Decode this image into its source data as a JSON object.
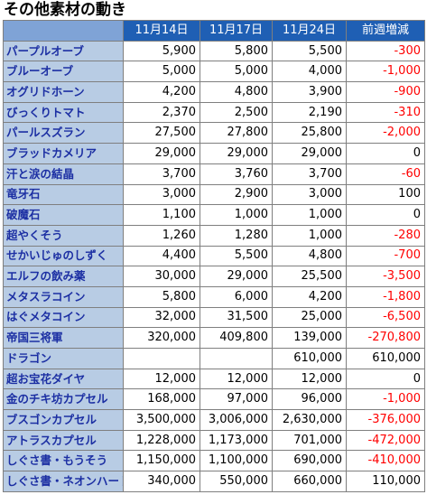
{
  "title": "その他素材の動き",
  "table": {
    "headers": [
      "",
      "11月14日",
      "11月17日",
      "11月24日",
      "前週増減"
    ],
    "rows": [
      {
        "name": "パープルオーブ",
        "d1": "5,900",
        "d2": "5,800",
        "d3": "5,500",
        "change": "-300"
      },
      {
        "name": "ブルーオーブ",
        "d1": "5,000",
        "d2": "5,000",
        "d3": "4,000",
        "change": "-1,000"
      },
      {
        "name": "オグリドホーン",
        "d1": "4,200",
        "d2": "4,800",
        "d3": "3,900",
        "change": "-900"
      },
      {
        "name": "びっくりトマト",
        "d1": "2,370",
        "d2": "2,500",
        "d3": "2,190",
        "change": "-310"
      },
      {
        "name": "パールスズラン",
        "d1": "27,500",
        "d2": "27,800",
        "d3": "25,800",
        "change": "-2,000"
      },
      {
        "name": "ブラッドカメリア",
        "d1": "29,000",
        "d2": "29,000",
        "d3": "29,000",
        "change": "0"
      },
      {
        "name": "汗と涙の結晶",
        "d1": "3,700",
        "d2": "3,760",
        "d3": "3,700",
        "change": "-60"
      },
      {
        "name": "竜牙石",
        "d1": "3,000",
        "d2": "2,900",
        "d3": "3,000",
        "change": "100"
      },
      {
        "name": "破魔石",
        "d1": "1,100",
        "d2": "1,000",
        "d3": "1,000",
        "change": "0"
      },
      {
        "name": "超やくそう",
        "d1": "1,260",
        "d2": "1,280",
        "d3": "1,000",
        "change": "-280"
      },
      {
        "name": "せかいじゅのしずく",
        "d1": "4,400",
        "d2": "5,500",
        "d3": "4,800",
        "change": "-700"
      },
      {
        "name": "エルフの飲み薬",
        "d1": "30,000",
        "d2": "29,000",
        "d3": "25,500",
        "change": "-3,500"
      },
      {
        "name": "メタスラコイン",
        "d1": "5,800",
        "d2": "6,000",
        "d3": "4,200",
        "change": "-1,800"
      },
      {
        "name": "はぐメタコイン",
        "d1": "32,000",
        "d2": "31,500",
        "d3": "25,000",
        "change": "-6,500"
      },
      {
        "name": "帝国三将軍",
        "d1": "320,000",
        "d2": "409,800",
        "d3": "139,000",
        "change": "-270,800"
      },
      {
        "name": "ドラゴン",
        "d1": "",
        "d2": "",
        "d3": "610,000",
        "change": "610,000"
      },
      {
        "name": "超お宝花ダイヤ",
        "d1": "12,000",
        "d2": "12,000",
        "d3": "12,000",
        "change": "0"
      },
      {
        "name": "金のチキ坊カプセル",
        "d1": "168,000",
        "d2": "97,000",
        "d3": "96,000",
        "change": "-1,000"
      },
      {
        "name": "ブスゴンカプセル",
        "d1": "3,500,000",
        "d2": "3,006,000",
        "d3": "2,630,000",
        "change": "-376,000"
      },
      {
        "name": "アトラスカプセル",
        "d1": "1,228,000",
        "d2": "1,173,000",
        "d3": "701,000",
        "change": "-472,000"
      },
      {
        "name": "しぐさ書・もうそう",
        "d1": "1,150,000",
        "d2": "1,100,000",
        "d3": "690,000",
        "change": "-410,000"
      },
      {
        "name": "しぐさ書・ネオンハート",
        "d1": "340,000",
        "d2": "550,000",
        "d3": "660,000",
        "change": "110,000"
      }
    ]
  },
  "colors": {
    "header_bg": "#1f5fb4",
    "name_bg": "#b8cce4",
    "name_text": "#1c2fa3",
    "negative": "#ff0000"
  }
}
